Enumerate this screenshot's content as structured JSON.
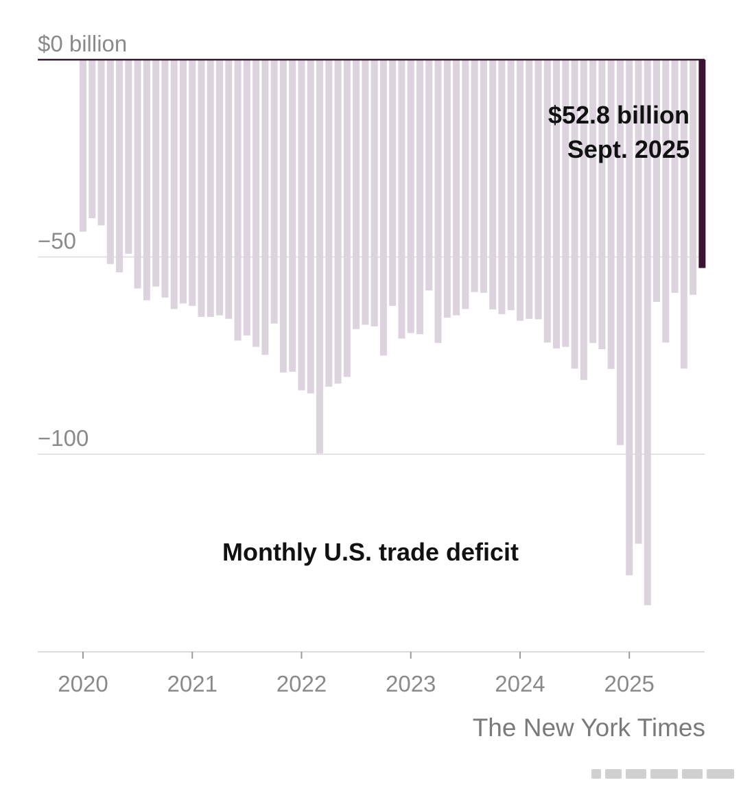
{
  "chart_data": {
    "type": "bar",
    "title": "Monthly U.S. trade deficit",
    "ylim": [
      -150,
      0
    ],
    "y_ticks": [
      {
        "value": 0,
        "label": "$0 billion"
      },
      {
        "value": -50,
        "label": "−50"
      },
      {
        "value": -100,
        "label": "−100"
      }
    ],
    "x_ticks": [
      {
        "index": 0,
        "label": "2020"
      },
      {
        "index": 12,
        "label": "2021"
      },
      {
        "index": 24,
        "label": "2022"
      },
      {
        "index": 36,
        "label": "2023"
      },
      {
        "index": 48,
        "label": "2024"
      },
      {
        "index": 60,
        "label": "2025"
      }
    ],
    "values": [
      -43.6,
      -40.2,
      -42.0,
      -51.8,
      -53.9,
      -49.2,
      -58.0,
      -61.0,
      -57.5,
      -60.3,
      -63.2,
      -61.8,
      -62.4,
      -65.2,
      -65.2,
      -64.8,
      -65.7,
      -71.2,
      -69.9,
      -72.8,
      -74.8,
      -66.9,
      -79.3,
      -79.1,
      -83.8,
      -84.6,
      -99.8,
      -82.9,
      -82.1,
      -80.4,
      -68.3,
      -67.2,
      -67.6,
      -75.0,
      -62.4,
      -70.7,
      -69.3,
      -69.6,
      -58.5,
      -71.8,
      -65.4,
      -64.8,
      -63.2,
      -58.9,
      -59.1,
      -63.3,
      -64.5,
      -63.5,
      -66.2,
      -65.7,
      -65.8,
      -71.7,
      -73.2,
      -72.8,
      -78.3,
      -81.2,
      -71.8,
      -73.4,
      -78.4,
      -97.7,
      -130.7,
      -122.7,
      -138.3,
      -61.4,
      -71.7,
      -59.1,
      -78.3,
      -59.6,
      -52.8
    ],
    "colors": {
      "bar": "#dcd3df",
      "highlight": "#3b1530",
      "zero_line": "#3b1530",
      "grid": "#e2e2e2"
    },
    "highlight_index": 68,
    "annotation": {
      "value_label": "$52.8 billion",
      "date_label": "Sept. 2025"
    },
    "grid": true
  },
  "credit": "The New York Times"
}
